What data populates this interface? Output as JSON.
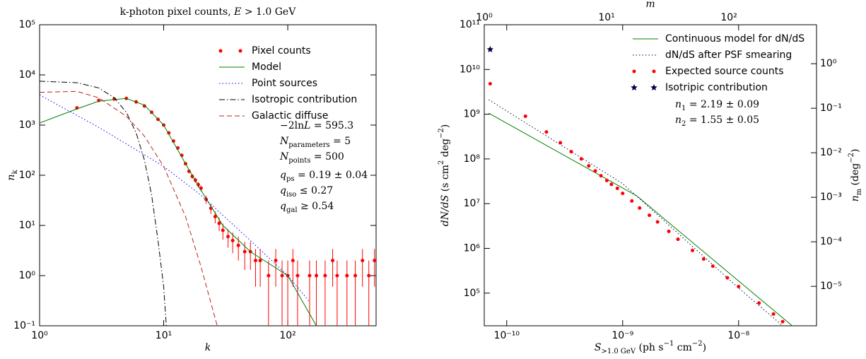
{
  "chart_data": [
    {
      "type": "line",
      "log_x": true,
      "log_y": true,
      "title": [
        {
          "text": "k-photon pixel counts, "
        },
        {
          "text": "E",
          "italic": true
        },
        {
          "text": " > 1.0 GeV"
        }
      ],
      "xlabel": [
        {
          "text": "k",
          "italic": true
        }
      ],
      "ylabel": [
        {
          "text": "n",
          "italic": true
        },
        {
          "text": "k",
          "sub": true
        }
      ],
      "xlim": [
        1,
        515
      ],
      "ylim": [
        0.1,
        100000
      ],
      "xticks": [
        {
          "value": 1,
          "label": "10⁰"
        },
        {
          "value": 10,
          "label": "10¹"
        },
        {
          "value": 100,
          "label": "10²"
        }
      ],
      "yticks": [
        {
          "value": 0.1,
          "label": "10⁻¹"
        },
        {
          "value": 1,
          "label": "10⁰"
        },
        {
          "value": 10,
          "label": "10¹"
        },
        {
          "value": 100,
          "label": "10²"
        },
        {
          "value": 1000,
          "label": "10³"
        },
        {
          "value": 10000,
          "label": "10⁴"
        },
        {
          "value": 100000,
          "label": "10⁵"
        }
      ],
      "legend": "upper right",
      "series": [
        {
          "name": "Pixel counts",
          "color": "#ff0000",
          "style": "none",
          "marker": "dot",
          "x": [
            2,
            3,
            4,
            5,
            6,
            7,
            8,
            9,
            10,
            11,
            12,
            13,
            14,
            15,
            16,
            17,
            18,
            19,
            20,
            22,
            24,
            26,
            28,
            30,
            33,
            36,
            40,
            45,
            50,
            55,
            60,
            70,
            80,
            90,
            100,
            110,
            120,
            150,
            170,
            200,
            230,
            250,
            300,
            350,
            400,
            450,
            500
          ],
          "values": [
            2200,
            3100,
            3300,
            3400,
            2900,
            2400,
            1800,
            1300,
            1000,
            700,
            480,
            350,
            250,
            170,
            120,
            95,
            80,
            65,
            55,
            33,
            22,
            15,
            11,
            8,
            6,
            5,
            4,
            3,
            3,
            2,
            2,
            1,
            2,
            1,
            1,
            2,
            1,
            1,
            1,
            1,
            2,
            1,
            1,
            1,
            2,
            1,
            2
          ],
          "errors": [
            47,
            56,
            57,
            58,
            54,
            49,
            42,
            36,
            32,
            26,
            22,
            19,
            16,
            13,
            11,
            10,
            9,
            8,
            7,
            6,
            5,
            4,
            3.3,
            2.8,
            2.4,
            2.2,
            2,
            1.7,
            1.7,
            1.4,
            1.4,
            1,
            1.4,
            1,
            1,
            1.4,
            1,
            1,
            1,
            1,
            1.4,
            1,
            1,
            1,
            1.4,
            1,
            1.4
          ]
        },
        {
          "name": "Model",
          "color": "#007f00",
          "style": "solid",
          "x": [
            1,
            2,
            3,
            5,
            7,
            10,
            15,
            20,
            30,
            50,
            100,
            170
          ],
          "values": [
            1100,
            2100,
            3000,
            3400,
            2500,
            1000,
            170,
            50,
            10,
            3,
            1,
            0.1
          ]
        },
        {
          "name": "Point sources",
          "color": "#0000ff",
          "style": "dotted",
          "x": [
            1,
            3,
            10,
            20,
            50,
            100,
            150
          ],
          "values": [
            4000,
            900,
            150,
            40,
            5,
            1,
            0.3
          ]
        },
        {
          "name": "Isotropic contribution",
          "color": "#000000",
          "style": "dashdot",
          "x": [
            1,
            2,
            3,
            4,
            5,
            6,
            7,
            8,
            9,
            10,
            10.5
          ],
          "values": [
            7500,
            7000,
            5500,
            3500,
            1800,
            700,
            200,
            40,
            5,
            0.6,
            0.1
          ]
        },
        {
          "name": "Galactic diffuse",
          "color": "#bf1f1f",
          "style": "dashed",
          "x": [
            1,
            2,
            3,
            5,
            7,
            10,
            15,
            20,
            25,
            27
          ],
          "values": [
            4500,
            4700,
            3500,
            1500,
            600,
            150,
            15,
            1.5,
            0.2,
            0.1
          ]
        }
      ],
      "annotations": [
        [
          {
            "text": "−2ln"
          },
          {
            "text": "L",
            "italic": true
          },
          {
            "text": " = 595.3"
          }
        ],
        [
          {
            "text": "N",
            "italic": true
          },
          {
            "text": "parameters",
            "sub": true
          },
          {
            "text": " = 5"
          }
        ],
        [
          {
            "text": "N",
            "italic": true
          },
          {
            "text": "points",
            "sub": true
          },
          {
            "text": " = 500"
          }
        ],
        [
          {
            "text": "q",
            "italic": true
          },
          {
            "text": "ps",
            "sub": true
          },
          {
            "text": " = 0.19 ± 0.04"
          }
        ],
        [
          {
            "text": "q",
            "italic": true
          },
          {
            "text": "iso",
            "sub": true
          },
          {
            "text": " ≤ 0.27"
          }
        ],
        [
          {
            "text": "q",
            "italic": true
          },
          {
            "text": "gal",
            "sub": true
          },
          {
            "text": " ≥ 0.54"
          }
        ]
      ]
    },
    {
      "type": "line",
      "log_x": true,
      "log_y": true,
      "xlabel": [
        {
          "text": "S",
          "italic": true
        },
        {
          "text": ">1.0 GeV",
          "sub": true
        },
        {
          "text": "  (ph s"
        },
        {
          "text": "−1",
          "sup": true
        },
        {
          "text": " cm"
        },
        {
          "text": "−2",
          "sup": true
        },
        {
          "text": ")"
        }
      ],
      "ylabel": [
        {
          "text": "dN/dS",
          "italic": true
        },
        {
          "text": "  (s cm"
        },
        {
          "text": "2",
          "sup": true
        },
        {
          "text": " deg"
        },
        {
          "text": "−2",
          "sup": true
        },
        {
          "text": ")"
        }
      ],
      "x2label": [
        {
          "text": "m",
          "italic": true
        }
      ],
      "y2label": [
        {
          "text": "n",
          "italic": true
        },
        {
          "text": "m",
          "sub": true
        },
        {
          "text": "  (deg"
        },
        {
          "text": "−2",
          "sup": true
        },
        {
          "text": ")"
        }
      ],
      "xlim": [
        6.4e-11,
        4.7e-08
      ],
      "ylim": [
        18600,
        100000000000
      ],
      "x2lim": [
        1,
        520
      ],
      "y2lim": [
        1.3e-06,
        7.5
      ],
      "xticks": [
        {
          "value": 1e-10,
          "label": "10⁻¹⁰"
        },
        {
          "value": 1e-09,
          "label": "10⁻⁹"
        },
        {
          "value": 1e-08,
          "label": "10⁻⁸"
        }
      ],
      "yticks": [
        {
          "value": 100000,
          "label": "10⁵"
        },
        {
          "value": 1000000,
          "label": "10⁶"
        },
        {
          "value": 10000000,
          "label": "10⁷"
        },
        {
          "value": 100000000,
          "label": "10⁸"
        },
        {
          "value": 1000000000,
          "label": "10⁹"
        },
        {
          "value": 10000000000,
          "label": "10¹⁰"
        },
        {
          "value": 100000000000,
          "label": "10¹¹"
        }
      ],
      "x2ticks": [
        {
          "value": 1,
          "label": "10⁰"
        },
        {
          "value": 10,
          "label": "10¹"
        },
        {
          "value": 100,
          "label": "10²"
        }
      ],
      "y2ticks": [
        {
          "value": 1e-05,
          "label": "10⁻⁵"
        },
        {
          "value": 0.0001,
          "label": "10⁻⁴"
        },
        {
          "value": 0.001,
          "label": "10⁻³"
        },
        {
          "value": 0.01,
          "label": "10⁻²"
        },
        {
          "value": 0.1,
          "label": "10⁻¹"
        },
        {
          "value": 1,
          "label": "10⁰"
        }
      ],
      "legend": "upper right",
      "series": [
        {
          "name": "Continuous model for dN/dS",
          "color": "#007f00",
          "style": "solid",
          "x": [
            7e-11,
            1.32e-09,
            2.9e-08
          ],
          "values": [
            1050000000,
            15000000,
            18600
          ]
        },
        {
          "name": "dN/dS after PSF smearing",
          "color": "#000044",
          "style": "dotted",
          "x": [
            7e-11,
            1e-09,
            1.5e-09,
            1e-08,
            2.4e-08
          ],
          "values": [
            2100000000,
            28000000,
            11000000,
            130000,
            18600
          ]
        },
        {
          "name": "Expected source counts",
          "color": "#ff0000",
          "style": "none",
          "marker": "dot",
          "x": [
            7.2e-11,
            1.45e-10,
            2.2e-10,
            2.9e-10,
            3.6e-10,
            4.4e-10,
            5.1e-10,
            5.8e-10,
            6.5e-10,
            7.3e-10,
            8e-10,
            9e-10,
            1e-09,
            1.2e-09,
            1.4e-09,
            1.7e-09,
            2e-09,
            2.5e-09,
            3e-09,
            4e-09,
            5e-09,
            6e-09,
            8e-09,
            1e-08,
            1.5e-08,
            2e-08,
            2.4e-08
          ],
          "values": [
            4800000000,
            900000000,
            400000000,
            230000000,
            145000000,
            100000000,
            70000000,
            54000000,
            42000000,
            33000000,
            27000000,
            22000000,
            17000000,
            11500000,
            8000000,
            5500000,
            3900000,
            2400000,
            1600000,
            900000,
            580000,
            400000,
            220000,
            140000,
            60000,
            34000,
            23000
          ]
        },
        {
          "name": "Isotripic contribution",
          "color": "#000044",
          "style": "none",
          "marker": "star",
          "x": [
            7.2e-11
          ],
          "values": [
            28000000000
          ]
        }
      ],
      "annotations": [
        [
          {
            "text": "n",
            "italic": true
          },
          {
            "text": "1",
            "sub": true
          },
          {
            "text": " = 2.19 ± 0.09"
          }
        ],
        [
          {
            "text": "n",
            "italic": true
          },
          {
            "text": "2",
            "sub": true
          },
          {
            "text": " = 1.55 ± 0.05"
          }
        ]
      ]
    }
  ]
}
